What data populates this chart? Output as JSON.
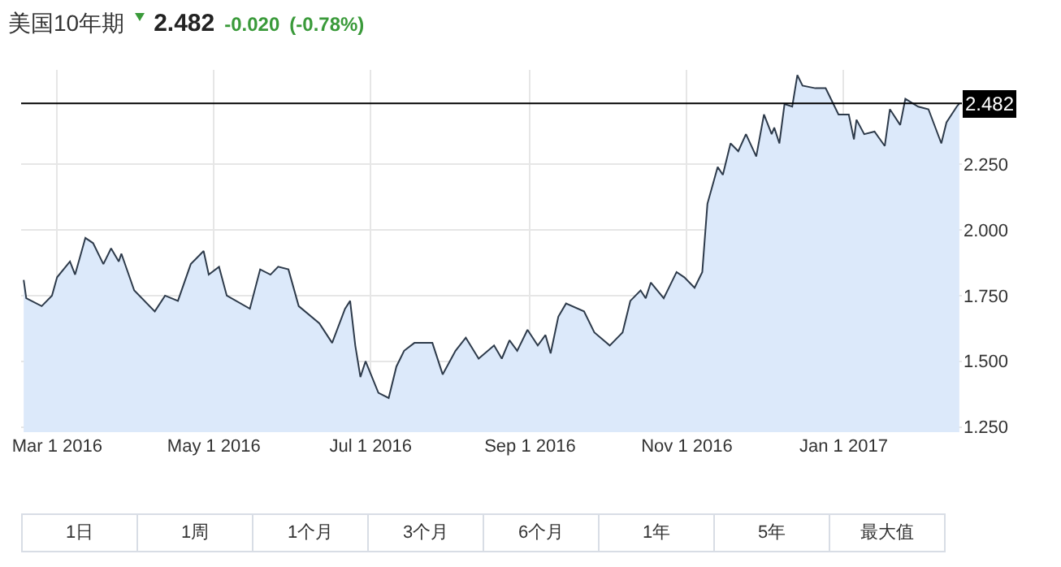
{
  "chart_data": {
    "type": "area",
    "title": "美国10年期",
    "annotations": [
      "2.482",
      "-0.020",
      "(-0.78%)",
      "1日",
      "1周",
      "1个月",
      "3个月",
      "6个月",
      "1年",
      "5年",
      "最大值"
    ],
    "x": [
      "2016-02-17",
      "2016-02-18",
      "2016-02-24",
      "2016-02-28",
      "2016-03-01",
      "2016-03-06",
      "2016-03-08",
      "2016-03-12",
      "2016-03-15",
      "2016-03-19",
      "2016-03-22",
      "2016-03-25",
      "2016-03-26",
      "2016-03-31",
      "2016-04-08",
      "2016-04-12",
      "2016-04-17",
      "2016-04-22",
      "2016-04-27",
      "2016-04-29",
      "2016-05-03",
      "2016-05-06",
      "2016-05-15",
      "2016-05-19",
      "2016-05-23",
      "2016-05-26",
      "2016-05-30",
      "2016-06-03",
      "2016-06-11",
      "2016-06-16",
      "2016-06-21",
      "2016-06-23",
      "2016-06-25",
      "2016-06-27",
      "2016-06-29",
      "2016-07-04",
      "2016-07-08",
      "2016-07-11",
      "2016-07-14",
      "2016-07-18",
      "2016-07-25",
      "2016-07-29",
      "2016-08-03",
      "2016-08-07",
      "2016-08-12",
      "2016-08-18",
      "2016-08-21",
      "2016-08-24",
      "2016-08-27",
      "2016-08-31",
      "2016-09-04",
      "2016-09-07",
      "2016-09-09",
      "2016-09-12",
      "2016-09-15",
      "2016-09-22",
      "2016-09-26",
      "2016-10-02",
      "2016-10-07",
      "2016-10-10",
      "2016-10-14",
      "2016-10-16",
      "2016-10-18",
      "2016-10-23",
      "2016-10-28",
      "2016-10-31",
      "2016-11-04",
      "2016-11-07",
      "2016-11-09",
      "2016-11-13",
      "2016-11-15",
      "2016-11-18",
      "2016-11-21",
      "2016-11-24",
      "2016-11-28",
      "2016-12-01",
      "2016-12-04",
      "2016-12-05",
      "2016-12-07",
      "2016-12-09",
      "2016-12-12",
      "2016-12-14",
      "2016-12-16",
      "2016-12-21",
      "2016-12-25",
      "2016-12-30",
      "2017-01-03",
      "2017-01-05",
      "2017-01-06",
      "2017-01-09",
      "2017-01-13",
      "2017-01-17",
      "2017-01-19",
      "2017-01-23",
      "2017-01-25",
      "2017-01-30",
      "2017-02-03",
      "2017-02-08",
      "2017-02-10",
      "2017-02-14",
      "2017-02-15"
    ],
    "series": [
      {
        "color": "#2d3a4a",
        "values": [
          1.81,
          1.74,
          1.71,
          1.75,
          1.82,
          1.88,
          1.83,
          1.97,
          1.95,
          1.87,
          1.93,
          1.88,
          1.91,
          1.77,
          1.69,
          1.75,
          1.73,
          1.87,
          1.92,
          1.83,
          1.86,
          1.75,
          1.7,
          1.85,
          1.83,
          1.86,
          1.85,
          1.71,
          1.645,
          1.57,
          1.7,
          1.73,
          1.56,
          1.44,
          1.5,
          1.38,
          1.36,
          1.48,
          1.54,
          1.57,
          1.57,
          1.45,
          1.54,
          1.59,
          1.51,
          1.56,
          1.51,
          1.58,
          1.54,
          1.62,
          1.56,
          1.6,
          1.53,
          1.67,
          1.72,
          1.69,
          1.61,
          1.56,
          1.61,
          1.73,
          1.77,
          1.74,
          1.8,
          1.74,
          1.84,
          1.82,
          1.78,
          1.84,
          2.1,
          2.24,
          2.21,
          2.33,
          2.3,
          2.365,
          2.28,
          2.44,
          2.365,
          2.39,
          2.33,
          2.48,
          2.47,
          2.59,
          2.55,
          2.54,
          2.54,
          2.44,
          2.44,
          2.345,
          2.42,
          2.365,
          2.375,
          2.32,
          2.46,
          2.4,
          2.5,
          2.47,
          2.46,
          2.33,
          2.41,
          2.47,
          2.482
        ]
      }
    ],
    "xlim": [
      "2016-02-16",
      "2017-02-16"
    ],
    "xticks": [
      {
        "value": "2016-03-01",
        "label": "Mar 1 2016"
      },
      {
        "value": "2016-05-01",
        "label": "May 1 2016"
      },
      {
        "value": "2016-07-01",
        "label": "Jul 1 2016"
      },
      {
        "value": "2016-09-01",
        "label": "Sep 1 2016"
      },
      {
        "value": "2016-11-01",
        "label": "Nov 1 2016"
      },
      {
        "value": "2017-01-01",
        "label": "Jan 1 2017"
      }
    ],
    "ylim": [
      1.23,
      2.61
    ],
    "yticks": [
      {
        "value": 1.25,
        "label": "1.250"
      },
      {
        "value": 1.5,
        "label": "1.500"
      },
      {
        "value": 1.75,
        "label": "1.750"
      },
      {
        "value": 2,
        "label": "2.000"
      },
      {
        "value": 2.25,
        "label": "2.250"
      }
    ],
    "ref_lines": [
      {
        "axis": "y",
        "value": 2.482,
        "label": "2.482",
        "color": "#000000"
      }
    ],
    "grid": true
  }
}
